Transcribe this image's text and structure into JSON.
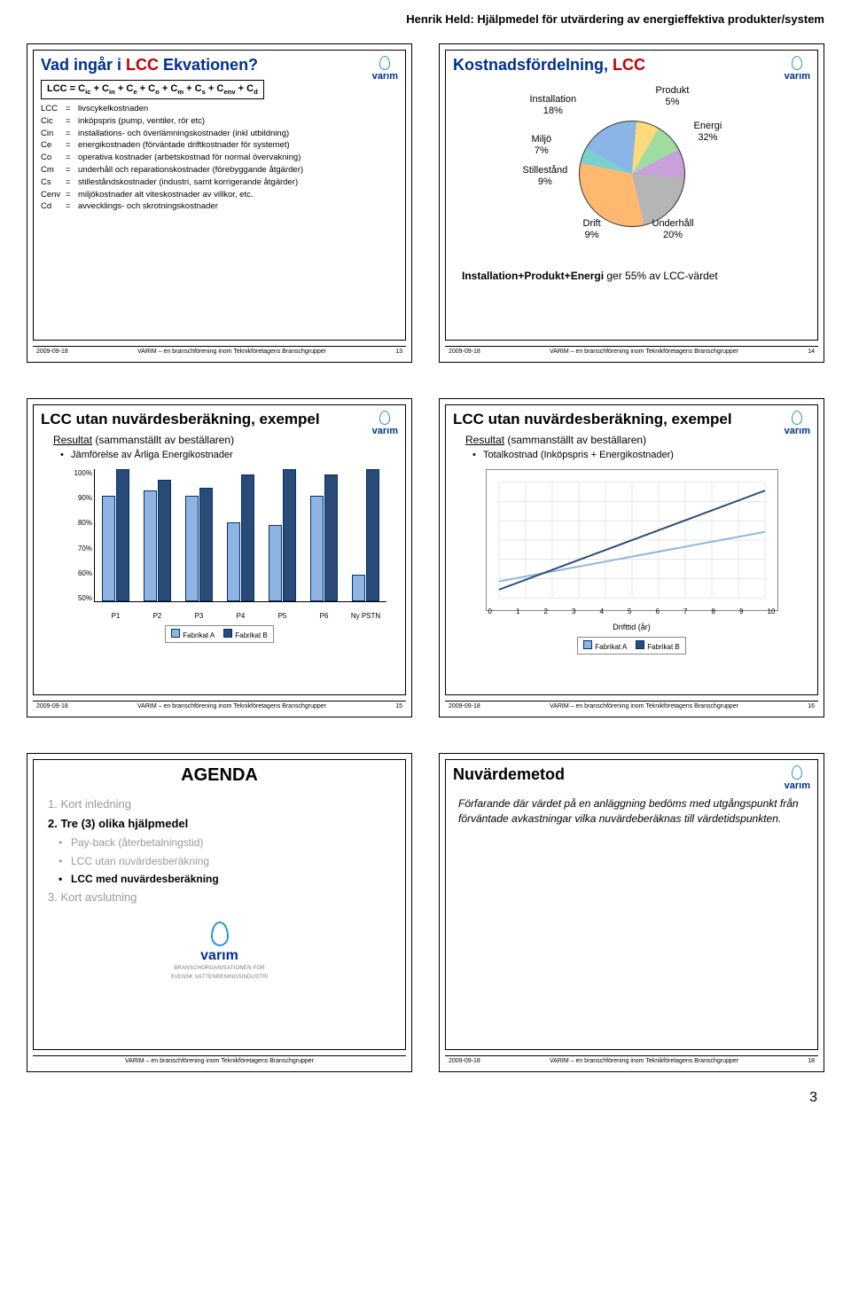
{
  "header": "Henrik Held: Hjälpmedel för utvärdering av energieffektiva produkter/system",
  "pageNumber": "3",
  "logoText": "varım",
  "footer": {
    "date": "2009-09-18",
    "mid": "VARIM – en branschförening inom Teknikföretagens Branschgrupper"
  },
  "slide13": {
    "titlePlain": "Vad ingår i ",
    "titleAccent": "LCC",
    "titleAfter": " Ekvationen?",
    "equation": "LCC = Cic + Cin + Ce + Co + Cm + Cs + Cenv + Cd",
    "defs": [
      [
        "LCC",
        "livscykelkostnaden"
      ],
      [
        "Cic",
        "inköpspris (pump, ventiler, rör etc)"
      ],
      [
        "Cin",
        "installations- och överlämningskostnader (inkl utbildning)"
      ],
      [
        "Ce",
        "energikostnaden (förväntade driftkostnader för systemet)"
      ],
      [
        "Co",
        "operativa kostnader (arbetskostnad för normal övervakning)"
      ],
      [
        "Cm",
        "underhåll och reparationskostnader (förebyggande åtgärder)"
      ],
      [
        "Cs",
        "stilleståndskostnader (industri, samt korrigerande åtgärder)"
      ],
      [
        "Cenv",
        "miljökostnader alt viteskostnader av villkor, etc."
      ],
      [
        "Cd",
        "avvecklings- och skrotningskostnader"
      ]
    ],
    "slideNo": "13"
  },
  "slide14": {
    "titlePlain": "Kostnadsfördelning, ",
    "titleAccent": "LCC",
    "data": [
      {
        "label": "Installation",
        "pct": "18%",
        "color": "#8ab5e6",
        "x": 0,
        "y": 10
      },
      {
        "label": "Miljö",
        "pct": "7%",
        "color": "#ffda7a",
        "x": 2,
        "y": 55
      },
      {
        "label": "Stillestånd",
        "pct": "9%",
        "color": "#a0dca0",
        "x": -8,
        "y": 90
      },
      {
        "label": "Drift",
        "pct": "9%",
        "color": "#c9a0dc",
        "x": 60,
        "y": 150
      },
      {
        "label": "Underhåll",
        "pct": "20%",
        "color": "#b5b5b5",
        "x": 138,
        "y": 150
      },
      {
        "label": "Energi",
        "pct": "32%",
        "color": "#ffb870",
        "x": 185,
        "y": 40
      },
      {
        "label": "Produkt",
        "pct": "5%",
        "color": "#7ad0d0",
        "x": 142,
        "y": 0
      }
    ],
    "noteA": "Installation+Produkt+Energi",
    "noteB": " ger 55% av LCC-värdet",
    "slideNo": "14"
  },
  "slide15": {
    "title": "LCC utan nuvärdesberäkning, exempel",
    "sub": "Resultat",
    "subAfter": " (sammanställt av beställaren)",
    "bullet": "Jämförelse av Årliga Energikostnader",
    "yTicks": [
      "50%",
      "60%",
      "70%",
      "80%",
      "90%",
      "100%"
    ],
    "ymin": 50,
    "ymax": 100,
    "colorA": "#8fb4e3",
    "colorB": "#2a4a78",
    "series": [
      {
        "x": "P1",
        "a": 90,
        "b": 100
      },
      {
        "x": "P2",
        "a": 92,
        "b": 96
      },
      {
        "x": "P3",
        "a": 90,
        "b": 93
      },
      {
        "x": "P4",
        "a": 80,
        "b": 98
      },
      {
        "x": "P5",
        "a": 79,
        "b": 100
      },
      {
        "x": "P6",
        "a": 90,
        "b": 98
      },
      {
        "x": "Ny PSTN",
        "a": 60,
        "b": 100
      }
    ],
    "legendA": "Fabrikat A",
    "legendB": "Fabrikat B",
    "slideNo": "15"
  },
  "slide16": {
    "title": "LCC utan nuvärdesberäkning, exempel",
    "sub": "Resultat",
    "subAfter": " (sammanställt av beställaren)",
    "bullet": "Totalkostnad (Inköpspris + Energikostnader)",
    "xTicks": [
      "0",
      "1",
      "2",
      "3",
      "4",
      "5",
      "6",
      "7",
      "8",
      "9",
      "10"
    ],
    "xTitle": "Drifttid (år)",
    "legendA": "Fabrikat A",
    "legendB": "Fabrikat B",
    "colorA": "#8fb4e3",
    "colorB": "#2a4a78",
    "lineA": [
      [
        0,
        20
      ],
      [
        10,
        80
      ]
    ],
    "lineB": [
      [
        0,
        10
      ],
      [
        10,
        130
      ]
    ],
    "slideNo": "16"
  },
  "slide17": {
    "title": "AGENDA",
    "items": [
      {
        "text": "1. Kort inledning",
        "grey": true,
        "sub": false
      },
      {
        "text": "2. Tre (3) olika hjälpmedel",
        "grey": false,
        "sub": false,
        "bold": true
      },
      {
        "text": "Pay-back (återbetalningstid)",
        "grey": true,
        "sub": true
      },
      {
        "text": "LCC utan nuvärdesberäkning",
        "grey": true,
        "sub": true
      },
      {
        "text": "LCC med nuvärdesberäkning",
        "grey": false,
        "sub": true,
        "bold": true
      },
      {
        "text": "3. Kort avslutning",
        "grey": true,
        "sub": false
      }
    ],
    "bigLogoSub1": "BRANSCHORGANISATIONEN FÖR",
    "bigLogoSub2": "SVENSK VATTENRENINGSINDUSTRI"
  },
  "slide18": {
    "title": "Nuvärdemetod",
    "body": "Förfarande där värdet på en anläggning bedöms med utgångspunkt från förväntade avkastningar vilka nuvärdeberäknas till värdetidspunkten.",
    "slideNo": "18"
  }
}
